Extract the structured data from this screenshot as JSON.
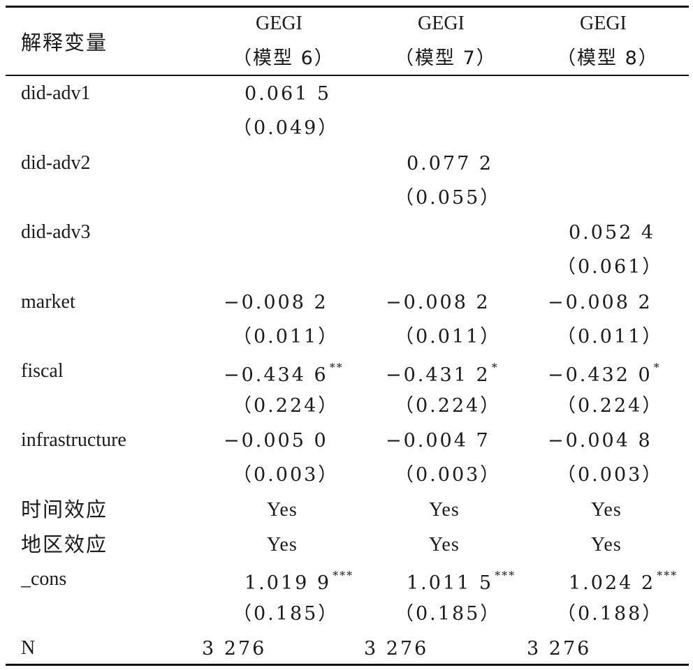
{
  "header": {
    "variable_label": "解释变量",
    "columns": [
      {
        "dep": "GEGI",
        "model": "（模型 6）"
      },
      {
        "dep": "GEGI",
        "model": "（模型 7）"
      },
      {
        "dep": "GEGI",
        "model": "（模型 8）"
      }
    ]
  },
  "rows": {
    "did_adv1": {
      "label": "did-adv1",
      "c1": "0.061 5",
      "c1se": "（0.049）"
    },
    "did_adv2": {
      "label": "did-adv2",
      "c2": "0.077 2",
      "c2se": "（0.055）"
    },
    "did_adv3": {
      "label": "did-adv3",
      "c3": "0.052 4",
      "c3se": "（0.061）"
    },
    "market": {
      "label": "market",
      "c1": "−0.008 2",
      "c2": "−0.008 2",
      "c3": "−0.008 2",
      "c1se": "（0.011）",
      "c2se": "（0.011）",
      "c3se": "（0.011）"
    },
    "fiscal": {
      "label": "fiscal",
      "c1": "−0.434 6",
      "c2": "−0.431 2",
      "c3": "−0.432 0",
      "c1star": "**",
      "c2star": "*",
      "c3star": "*",
      "c1se": "（0.224）",
      "c2se": "（0.224）",
      "c3se": "（0.224）"
    },
    "infrastructure": {
      "label": "infrastructure",
      "c1": "−0.005 0",
      "c2": "−0.004 7",
      "c3": "−0.004 8",
      "c1se": "（0.003）",
      "c2se": "（0.003）",
      "c3se": "（0.003）"
    },
    "time_effect": {
      "label": "时间效应",
      "c1": "Yes",
      "c2": "Yes",
      "c3": "Yes"
    },
    "region_effect": {
      "label": "地区效应",
      "c1": "Yes",
      "c2": "Yes",
      "c3": "Yes"
    },
    "cons": {
      "label": "_cons",
      "c1": "1.019 9",
      "c2": "1.011 5",
      "c3": "1.024 2",
      "c1star": "***",
      "c2star": "***",
      "c3star": "***",
      "c1se": "（0.185）",
      "c2se": "（0.185）",
      "c3se": "（0.188）"
    },
    "n": {
      "label": "N",
      "c1": "3 276",
      "c2": "3 276",
      "c3": "3 276"
    }
  }
}
